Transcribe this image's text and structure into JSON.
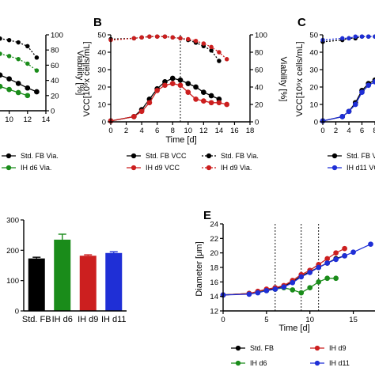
{
  "colors": {
    "std": "#000000",
    "ih_d6": "#1a8c1a",
    "ih_d9": "#cc1f1f",
    "ih_d11": "#1f2fd6",
    "viability_std": "#555555"
  },
  "panel_letters": {
    "B": "B",
    "C": "C",
    "E": "E"
  },
  "chart_data": [
    {
      "id": "partial-left",
      "type": "line",
      "xlabel": "",
      "ylabel": "Viability [%]",
      "x_ticks": [
        "10",
        "12",
        "14"
      ],
      "xlim": [
        9,
        14
      ],
      "y_ticks": [
        "0",
        "20",
        "40",
        "60",
        "80",
        "100"
      ],
      "ylim": [
        0,
        100
      ],
      "series": [
        {
          "name": "",
          "color_key": "std",
          "style": "dotted",
          "x": [
            9,
            10,
            11,
            12,
            13
          ],
          "y": [
            95,
            93,
            90,
            85,
            70
          ]
        },
        {
          "name": "",
          "color_key": "ih_d6",
          "style": "dotted",
          "x": [
            9,
            10,
            11,
            12,
            13
          ],
          "y": [
            75,
            72,
            68,
            62,
            53
          ]
        },
        {
          "name": "",
          "color_key": "std",
          "style": "solid",
          "x": [
            9,
            10,
            11,
            12,
            13
          ],
          "y": [
            47,
            42,
            36,
            30,
            25
          ]
        },
        {
          "name": "",
          "color_key": "ih_d6",
          "style": "solid",
          "x": [
            9,
            10,
            11,
            12
          ],
          "y": [
            32,
            28,
            24,
            20
          ]
        }
      ],
      "legend": [
        {
          "label": "Std. FB Via.",
          "color_key": "std"
        },
        {
          "label": "IH d6 Via.",
          "color_key": "ih_d6"
        }
      ]
    },
    {
      "id": "B",
      "type": "line",
      "title": "Time [d]",
      "xlabel": "Time [d]",
      "ylabel": "VCC[10⁶x cells/mL]",
      "y2label": "Viability [%]",
      "x_ticks": [
        "0",
        "2",
        "4",
        "6",
        "8",
        "10",
        "12",
        "14",
        "16",
        "18"
      ],
      "xlim": [
        0,
        18
      ],
      "y_ticks": [
        "0",
        "10",
        "20",
        "30",
        "40",
        "50"
      ],
      "ylim": [
        0,
        50
      ],
      "y2_ticks": [
        "0",
        "20",
        "40",
        "60",
        "80",
        "100"
      ],
      "y2lim": [
        0,
        100
      ],
      "vline": 9,
      "series": [
        {
          "name": "Std. FB VCC",
          "color_key": "std",
          "axis": "y",
          "style": "solid",
          "x": [
            0,
            3,
            4,
            5,
            6,
            7,
            8,
            9,
            10,
            11,
            12,
            13,
            14
          ],
          "y": [
            0.5,
            3,
            7,
            13,
            19,
            23,
            25,
            24,
            22,
            20,
            17,
            15,
            13
          ]
        },
        {
          "name": "IH d9 VCC",
          "color_key": "ih_d9",
          "axis": "y",
          "style": "solid",
          "x": [
            0,
            3,
            4,
            5,
            6,
            7,
            8,
            9,
            10,
            11,
            12,
            13,
            14,
            15
          ],
          "y": [
            0.5,
            3,
            6,
            11,
            18,
            21,
            22,
            21,
            17,
            13,
            12,
            11,
            11,
            10
          ]
        },
        {
          "name": "Std. FB Via.",
          "color_key": "std",
          "axis": "y2",
          "style": "dotted",
          "x": [
            0,
            3,
            4,
            5,
            6,
            7,
            8,
            9,
            10,
            11,
            12,
            13,
            14
          ],
          "y": [
            95,
            96,
            97,
            98,
            98,
            98,
            97,
            96,
            94,
            91,
            87,
            82,
            70
          ]
        },
        {
          "name": "IH d9 Via.",
          "color_key": "ih_d9",
          "axis": "y2",
          "style": "dotted",
          "x": [
            0,
            3,
            4,
            5,
            6,
            7,
            8,
            9,
            10,
            11,
            12,
            13,
            14,
            15
          ],
          "y": [
            94,
            96,
            97,
            98,
            98,
            98,
            97,
            96,
            95,
            93,
            90,
            86,
            80,
            72
          ]
        }
      ],
      "legend": [
        {
          "label": "Std. FB VCC",
          "color_key": "std",
          "style": "solid"
        },
        {
          "label": "Std. FB Via.",
          "color_key": "std",
          "style": "dotted"
        },
        {
          "label": "IH d9 VCC",
          "color_key": "ih_d9",
          "style": "solid"
        },
        {
          "label": "IH d9 Via.",
          "color_key": "ih_d9",
          "style": "dotted"
        }
      ]
    },
    {
      "id": "C",
      "type": "line",
      "ylabel": "VCC[10⁶x cells/mL]",
      "x_ticks": [
        "0",
        "2",
        "4",
        "6",
        "8"
      ],
      "xlim": [
        0,
        8
      ],
      "y_ticks": [
        "0",
        "10",
        "20",
        "30",
        "40",
        "50"
      ],
      "ylim": [
        0,
        50
      ],
      "series": [
        {
          "name": "",
          "color_key": "std",
          "style": "dotted",
          "x": [
            0,
            3,
            4,
            5,
            6,
            7,
            8
          ],
          "y": [
            46,
            47,
            48,
            48,
            49,
            49,
            49
          ]
        },
        {
          "name": "",
          "color_key": "ih_d11",
          "style": "dotted",
          "x": [
            0,
            3,
            4,
            5,
            6,
            7,
            8
          ],
          "y": [
            47,
            48,
            48,
            49,
            49,
            49,
            49
          ]
        },
        {
          "name": "",
          "color_key": "std",
          "style": "solid",
          "x": [
            0,
            3,
            4,
            5,
            6,
            7,
            8
          ],
          "y": [
            0.5,
            3,
            6,
            11,
            18,
            22,
            24
          ]
        },
        {
          "name": "",
          "color_key": "ih_d11",
          "style": "solid",
          "x": [
            0,
            3,
            4,
            5,
            6,
            7,
            8
          ],
          "y": [
            0.5,
            3,
            6,
            10,
            17,
            21,
            23
          ]
        }
      ],
      "legend": [
        {
          "label": "Std. FB V",
          "color_key": "std"
        },
        {
          "label": "IH d11 VC",
          "color_key": "ih_d11"
        }
      ]
    },
    {
      "id": "D",
      "type": "bar",
      "categories": [
        "Std. FB",
        "IH d6",
        "IH d9",
        "IH d11"
      ],
      "values": [
        173,
        235,
        182,
        191
      ],
      "errors": [
        4,
        18,
        3,
        4
      ],
      "color_keys": [
        "std",
        "ih_d6",
        "ih_d9",
        "ih_d11"
      ],
      "y_ticks": [
        "0",
        "100",
        "200",
        "300"
      ],
      "ylim": [
        0,
        300
      ]
    },
    {
      "id": "E",
      "type": "line",
      "title": "Time [d]",
      "xlabel": "Time [d]",
      "ylabel": "Diameter [μm]",
      "x_ticks": [
        "0",
        "5",
        "10",
        "15"
      ],
      "xlim": [
        0,
        17.5
      ],
      "y_ticks": [
        "12",
        "14",
        "16",
        "18",
        "20",
        "22",
        "24"
      ],
      "ylim": [
        12,
        24
      ],
      "vlines": [
        6,
        9,
        11
      ],
      "series": [
        {
          "name": "Std. FB",
          "color_key": "std",
          "x": [
            0,
            3,
            4,
            5,
            6,
            7,
            8,
            9,
            10,
            11,
            12,
            13,
            14
          ],
          "y": [
            14.2,
            14.4,
            14.6,
            14.9,
            15.1,
            15.4,
            16.0,
            16.8,
            17.4,
            18.0,
            18.6,
            19.2,
            19.6
          ]
        },
        {
          "name": "IH d6",
          "color_key": "ih_d6",
          "x": [
            0,
            3,
            4,
            5,
            6,
            7,
            8,
            9,
            10,
            11,
            12,
            13
          ],
          "y": [
            14.2,
            14.4,
            14.6,
            14.8,
            15.0,
            15.2,
            14.9,
            14.5,
            15.2,
            16.0,
            16.5,
            16.5
          ]
        },
        {
          "name": "IH d9",
          "color_key": "ih_d9",
          "x": [
            0,
            3,
            4,
            5,
            6,
            7,
            8,
            9,
            10,
            11,
            12,
            13,
            14
          ],
          "y": [
            14.2,
            14.4,
            14.7,
            15.0,
            15.2,
            15.5,
            16.2,
            17.0,
            17.6,
            18.4,
            19.2,
            20.0,
            20.6
          ]
        },
        {
          "name": "IH d11",
          "color_key": "ih_d11",
          "x": [
            0,
            3,
            4,
            5,
            6,
            7,
            8,
            9,
            10,
            11,
            12,
            13,
            14,
            15,
            17
          ],
          "y": [
            14.2,
            14.3,
            14.5,
            14.8,
            15.0,
            15.3,
            15.9,
            16.7,
            17.3,
            18.0,
            18.6,
            19.1,
            19.6,
            20.1,
            21.2
          ]
        }
      ],
      "legend": [
        {
          "label": "Std. FB",
          "color_key": "std"
        },
        {
          "label": "IH d9",
          "color_key": "ih_d9"
        },
        {
          "label": "IH d6",
          "color_key": "ih_d6"
        },
        {
          "label": "IH d11",
          "color_key": "ih_d11"
        }
      ]
    }
  ]
}
